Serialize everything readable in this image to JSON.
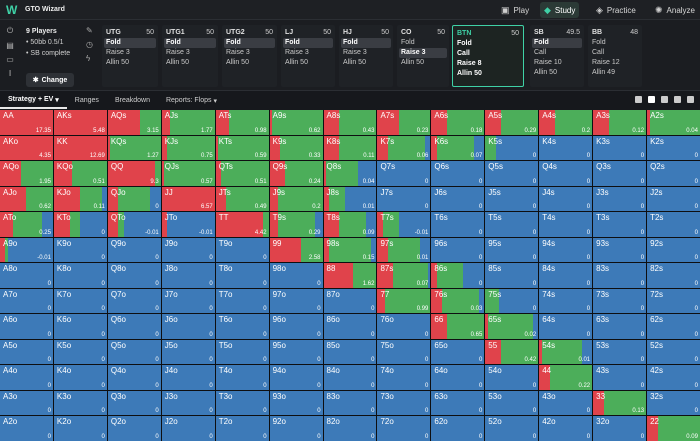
{
  "app": {
    "brand": "GTO Wizard"
  },
  "nav": [
    {
      "label": "Play",
      "icon": "play-icon",
      "active": false
    },
    {
      "label": "Study",
      "icon": "study-icon",
      "active": true
    },
    {
      "label": "Practice",
      "icon": "practice-icon",
      "active": false
    },
    {
      "label": "Analyze",
      "icon": "analyze-icon",
      "active": false
    }
  ],
  "game": {
    "players": "9 Players",
    "stakes": "50bb 0.5/1",
    "note": "SB complete",
    "change_label": "Change"
  },
  "seats": [
    {
      "pos": "UTG",
      "stack": "50",
      "actions": [
        "Fold",
        "Raise 3",
        "Allin 50"
      ],
      "selected": 0
    },
    {
      "pos": "UTG1",
      "stack": "50",
      "actions": [
        "Fold",
        "Raise 3",
        "Allin 50"
      ],
      "selected": 0
    },
    {
      "pos": "UTG2",
      "stack": "50",
      "actions": [
        "Fold",
        "Raise 3",
        "Allin 50"
      ],
      "selected": 0
    },
    {
      "pos": "LJ",
      "stack": "50",
      "actions": [
        "Fold",
        "Raise 3",
        "Allin 50"
      ],
      "selected": 0
    },
    {
      "pos": "HJ",
      "stack": "50",
      "actions": [
        "Fold",
        "Raise 3",
        "Allin 50"
      ],
      "selected": 0
    },
    {
      "pos": "CO",
      "stack": "50",
      "actions": [
        "Fold",
        "Raise 3",
        "Allin 50"
      ],
      "selected": 1
    },
    {
      "pos": "BTN",
      "stack": "50",
      "actions": [
        "Fold",
        "Call",
        "Raise 8",
        "Allin 50"
      ],
      "selected": -1,
      "active": true
    },
    {
      "pos": "SB",
      "stack": "49.5",
      "actions": [
        "Fold",
        "Call",
        "Raise 10",
        "Allin 50"
      ],
      "selected": 0
    },
    {
      "pos": "BB",
      "stack": "48",
      "actions": [
        "Fold",
        "Call",
        "Raise 12",
        "Allin 49"
      ],
      "selected": -1
    }
  ],
  "tabs": [
    {
      "label": "Strategy + EV",
      "active": true
    },
    {
      "label": "Ranges",
      "active": false
    },
    {
      "label": "Breakdown",
      "active": false
    },
    {
      "label": "Reports: Flops",
      "active": false
    }
  ],
  "colors": {
    "raise": "#e0434b",
    "call": "#4cae5a",
    "fold": "#3d7ab8",
    "accent": "#3fd1a6"
  },
  "matrix": [
    [
      [
        "AA",
        "17.35",
        1,
        0
      ],
      [
        "AKs",
        "5.48",
        1,
        0
      ],
      [
        "AQs",
        "3.15",
        0.6,
        0.4
      ],
      [
        "AJs",
        "1.77",
        0.15,
        0.85
      ],
      [
        "ATs",
        "0.98",
        0.25,
        0.75
      ],
      [
        "A9s",
        "0.62",
        0.05,
        0.95
      ],
      [
        "A8s",
        "0.43",
        0.3,
        0.7
      ],
      [
        "A7s",
        "0.23",
        0.4,
        0.6
      ],
      [
        "A6s",
        "0.18",
        0.3,
        0.7
      ],
      [
        "A5s",
        "0.29",
        0.3,
        0.7
      ],
      [
        "A4s",
        "0.2",
        0.3,
        0.7
      ],
      [
        "A3s",
        "0.12",
        0.3,
        0.7
      ],
      [
        "A2s",
        "0.04",
        0.05,
        0.95
      ]
    ],
    [
      [
        "AKo",
        "4.35",
        1,
        0
      ],
      [
        "KK",
        "12.69",
        1,
        0
      ],
      [
        "KQs",
        "1.27",
        0.05,
        0.95
      ],
      [
        "KJs",
        "0.75",
        0.1,
        0.9
      ],
      [
        "KTs",
        "0.59",
        0.05,
        0.95
      ],
      [
        "K9s",
        "0.33",
        0.2,
        0.8
      ],
      [
        "K8s",
        "0.11",
        0.3,
        0.7
      ],
      [
        "K7s",
        "0.06",
        0.2,
        0.7
      ],
      [
        "K6s",
        "0.07",
        0.1,
        0.7
      ],
      [
        "K5s",
        "0",
        0,
        0.2
      ],
      [
        "K4s",
        "0",
        0,
        0
      ],
      [
        "K3s",
        "0",
        0,
        0
      ],
      [
        "K2s",
        "0",
        0,
        0
      ]
    ],
    [
      [
        "AQo",
        "1.95",
        0.4,
        0.6
      ],
      [
        "KQo",
        "0.51",
        0.35,
        0.65
      ],
      [
        "QQ",
        "9.3",
        0.9,
        0.1
      ],
      [
        "QJs",
        "0.57",
        0.05,
        0.95
      ],
      [
        "QTs",
        "0.51",
        0.1,
        0.9
      ],
      [
        "Q9s",
        "0.24",
        0.3,
        0.7
      ],
      [
        "Q8s",
        "0.04",
        0.05,
        0.6
      ],
      [
        "Q7s",
        "0",
        0,
        0
      ],
      [
        "Q6s",
        "0",
        0,
        0
      ],
      [
        "Q5s",
        "0",
        0,
        0
      ],
      [
        "Q4s",
        "0",
        0,
        0
      ],
      [
        "Q3s",
        "0",
        0,
        0
      ],
      [
        "Q2s",
        "0",
        0,
        0
      ]
    ],
    [
      [
        "AJo",
        "0.62",
        0.5,
        0.5
      ],
      [
        "KJo",
        "0.11",
        0.5,
        0.4
      ],
      [
        "QJo",
        "0",
        0.2,
        0.6
      ],
      [
        "JJ",
        "6.57",
        1,
        0
      ],
      [
        "JTs",
        "0.49",
        0.2,
        0.8
      ],
      [
        "J9s",
        "0.2",
        0.15,
        0.85
      ],
      [
        "J8s",
        "0.01",
        0.1,
        0.3
      ],
      [
        "J7s",
        "0",
        0,
        0
      ],
      [
        "J6s",
        "0",
        0,
        0
      ],
      [
        "J5s",
        "0",
        0,
        0
      ],
      [
        "J4s",
        "0",
        0,
        0
      ],
      [
        "J3s",
        "0",
        0,
        0
      ],
      [
        "J2s",
        "0",
        0,
        0
      ]
    ],
    [
      [
        "ATo",
        "0.25",
        0.25,
        0.55
      ],
      [
        "KTo",
        "0",
        0.3,
        0.2
      ],
      [
        "QTo",
        "-0.01",
        0.2,
        0.1
      ],
      [
        "JTo",
        "-0.01",
        0.1,
        0
      ],
      [
        "TT",
        "4.42",
        0.9,
        0.1
      ],
      [
        "T9s",
        "0.29",
        0.15,
        0.7
      ],
      [
        "T8s",
        "0.09",
        0.3,
        0.5
      ],
      [
        "T7s",
        "-0.01",
        0.1,
        0.3
      ],
      [
        "T6s",
        "0",
        0,
        0
      ],
      [
        "T5s",
        "0",
        0,
        0
      ],
      [
        "T4s",
        "0",
        0,
        0
      ],
      [
        "T3s",
        "0",
        0,
        0
      ],
      [
        "T2s",
        "0",
        0,
        0
      ]
    ],
    [
      [
        "A9o",
        "-0.01",
        0.1,
        0.05
      ],
      [
        "K9o",
        "0",
        0,
        0
      ],
      [
        "Q9o",
        "0",
        0,
        0
      ],
      [
        "J9o",
        "0",
        0,
        0
      ],
      [
        "T9o",
        "0",
        0,
        0
      ],
      [
        "99",
        "2.58",
        0.6,
        0.4
      ],
      [
        "98s",
        "0.15",
        0.1,
        0.8
      ],
      [
        "97s",
        "0.01",
        0.2,
        0.6
      ],
      [
        "96s",
        "0",
        0,
        0
      ],
      [
        "95s",
        "0",
        0,
        0
      ],
      [
        "94s",
        "0",
        0,
        0
      ],
      [
        "93s",
        "0",
        0,
        0
      ],
      [
        "92s",
        "0",
        0,
        0
      ]
    ],
    [
      [
        "A8o",
        "0",
        0,
        0
      ],
      [
        "K8o",
        "0",
        0,
        0
      ],
      [
        "Q8o",
        "0",
        0,
        0
      ],
      [
        "J8o",
        "0",
        0,
        0
      ],
      [
        "T8o",
        "0",
        0,
        0
      ],
      [
        "98o",
        "0",
        0,
        0
      ],
      [
        "88",
        "1.62",
        0.55,
        0.45
      ],
      [
        "87s",
        "0.07",
        0.3,
        0.65
      ],
      [
        "86s",
        "0",
        0.1,
        0.5
      ],
      [
        "85s",
        "0",
        0,
        0
      ],
      [
        "84s",
        "0",
        0,
        0
      ],
      [
        "83s",
        "0",
        0,
        0
      ],
      [
        "82s",
        "0",
        0,
        0
      ]
    ],
    [
      [
        "A7o",
        "0",
        0,
        0
      ],
      [
        "K7o",
        "0",
        0,
        0
      ],
      [
        "Q7o",
        "0",
        0,
        0
      ],
      [
        "J7o",
        "0",
        0,
        0
      ],
      [
        "T7o",
        "0",
        0,
        0
      ],
      [
        "97o",
        "0",
        0,
        0
      ],
      [
        "87o",
        "0",
        0,
        0
      ],
      [
        "77",
        "0.99",
        0.15,
        0.85
      ],
      [
        "76s",
        "0.03",
        0.2,
        0.7
      ],
      [
        "75s",
        "0",
        0,
        0.25
      ],
      [
        "74s",
        "0",
        0,
        0
      ],
      [
        "73s",
        "0",
        0,
        0
      ],
      [
        "72s",
        "0",
        0,
        0
      ]
    ],
    [
      [
        "A6o",
        "0",
        0,
        0
      ],
      [
        "K6o",
        "0",
        0,
        0
      ],
      [
        "Q6o",
        "0",
        0,
        0
      ],
      [
        "J6o",
        "0",
        0,
        0
      ],
      [
        "T6o",
        "0",
        0,
        0
      ],
      [
        "96o",
        "0",
        0,
        0
      ],
      [
        "86o",
        "0",
        0,
        0
      ],
      [
        "76o",
        "0",
        0,
        0
      ],
      [
        "66",
        "0.65",
        0.3,
        0.7
      ],
      [
        "65s",
        "0.02",
        0.05,
        0.85
      ],
      [
        "64s",
        "0",
        0,
        0
      ],
      [
        "63s",
        "0",
        0,
        0
      ],
      [
        "62s",
        "0",
        0,
        0
      ]
    ],
    [
      [
        "A5o",
        "0",
        0,
        0
      ],
      [
        "K5o",
        "0",
        0,
        0
      ],
      [
        "Q5o",
        "0",
        0,
        0
      ],
      [
        "J5o",
        "0",
        0,
        0
      ],
      [
        "T5o",
        "0",
        0,
        0
      ],
      [
        "95o",
        "0",
        0,
        0
      ],
      [
        "85o",
        "0",
        0,
        0
      ],
      [
        "75o",
        "0",
        0,
        0
      ],
      [
        "65o",
        "0",
        0,
        0
      ],
      [
        "55",
        "0.42",
        0.3,
        0.7
      ],
      [
        "54s",
        "0.01",
        0.05,
        0.75
      ],
      [
        "53s",
        "0",
        0,
        0
      ],
      [
        "52s",
        "0",
        0,
        0
      ]
    ],
    [
      [
        "A4o",
        "0",
        0,
        0
      ],
      [
        "K4o",
        "0",
        0,
        0
      ],
      [
        "Q4o",
        "0",
        0,
        0
      ],
      [
        "J4o",
        "0",
        0,
        0
      ],
      [
        "T4o",
        "0",
        0,
        0
      ],
      [
        "94o",
        "0",
        0,
        0
      ],
      [
        "84o",
        "0",
        0,
        0
      ],
      [
        "74o",
        "0",
        0,
        0
      ],
      [
        "64o",
        "0",
        0,
        0
      ],
      [
        "54o",
        "0",
        0,
        0
      ],
      [
        "44",
        "0.22",
        0.2,
        0.8
      ],
      [
        "43s",
        "0",
        0,
        0
      ],
      [
        "42s",
        "0",
        0,
        0
      ]
    ],
    [
      [
        "A3o",
        "0",
        0,
        0
      ],
      [
        "K3o",
        "0",
        0,
        0
      ],
      [
        "Q3o",
        "0",
        0,
        0
      ],
      [
        "J3o",
        "0",
        0,
        0
      ],
      [
        "T3o",
        "0",
        0,
        0
      ],
      [
        "93o",
        "0",
        0,
        0
      ],
      [
        "83o",
        "0",
        0,
        0
      ],
      [
        "73o",
        "0",
        0,
        0
      ],
      [
        "63o",
        "0",
        0,
        0
      ],
      [
        "53o",
        "0",
        0,
        0
      ],
      [
        "43o",
        "0",
        0,
        0
      ],
      [
        "33",
        "0.13",
        0.2,
        0.8
      ],
      [
        "32s",
        "0",
        0,
        0
      ]
    ],
    [
      [
        "A2o",
        "0",
        0,
        0
      ],
      [
        "K2o",
        "0",
        0,
        0
      ],
      [
        "Q2o",
        "0",
        0,
        0
      ],
      [
        "J2o",
        "0",
        0,
        0
      ],
      [
        "T2o",
        "0",
        0,
        0
      ],
      [
        "92o",
        "0",
        0,
        0
      ],
      [
        "82o",
        "0",
        0,
        0
      ],
      [
        "72o",
        "0",
        0,
        0
      ],
      [
        "62o",
        "0",
        0,
        0
      ],
      [
        "52o",
        "0",
        0,
        0
      ],
      [
        "42o",
        "0",
        0,
        0
      ],
      [
        "32o",
        "0",
        0,
        0
      ],
      [
        "22",
        "0.09",
        0.2,
        0.8
      ]
    ]
  ]
}
